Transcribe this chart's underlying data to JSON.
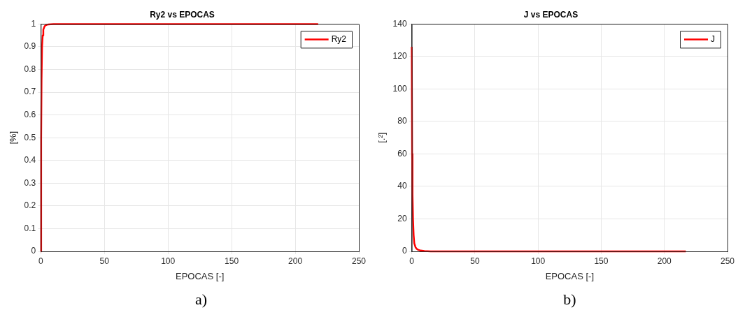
{
  "chart_data": [
    {
      "type": "line",
      "title": "Ry2 vs EPOCAS",
      "xlabel": "EPOCAS [-]",
      "ylabel": "[%]",
      "annotations": [
        "a)"
      ],
      "series": [
        {
          "name": "Ry2",
          "color": "#ff0000",
          "x": [
            0,
            0.3,
            0.6,
            1,
            1.5,
            2,
            3,
            4,
            5,
            6,
            8,
            10,
            15,
            20,
            50,
            100,
            150,
            218
          ],
          "values": [
            0,
            0.5,
            0.75,
            0.9,
            0.95,
            0.975,
            0.99,
            0.995,
            0.997,
            0.998,
            0.999,
            1,
            1,
            1,
            1,
            1,
            1,
            1
          ]
        }
      ],
      "xlim": [
        0,
        250
      ],
      "xticks": [
        0,
        50,
        100,
        150,
        200,
        250
      ],
      "ylim": [
        0,
        1
      ],
      "yticks": [
        0,
        0.1,
        0.2,
        0.3,
        0.4,
        0.5,
        0.6,
        0.7,
        0.8,
        0.9,
        1
      ],
      "grid": true,
      "legend": "top right",
      "line_style": "solid",
      "marker": "none"
    },
    {
      "type": "line",
      "title": "J vs EPOCAS",
      "xlabel": "EPOCAS [-]",
      "ylabel": "[.²]",
      "annotations": [
        "b)"
      ],
      "series": [
        {
          "name": "J",
          "color": "#ff0000",
          "x": [
            0,
            0.3,
            0.6,
            1,
            1.5,
            2,
            3,
            4,
            5,
            7,
            10,
            15,
            20,
            50,
            100,
            150,
            217
          ],
          "values": [
            126,
            60,
            35,
            20,
            10,
            5,
            2.5,
            1.5,
            1,
            0.5,
            0.2,
            0,
            0,
            0,
            0,
            0,
            0
          ]
        }
      ],
      "xlim": [
        0,
        250
      ],
      "xticks": [
        0,
        50,
        100,
        150,
        200,
        250
      ],
      "ylim": [
        0,
        140
      ],
      "yticks": [
        0,
        20,
        40,
        60,
        80,
        100,
        120,
        140
      ],
      "grid": true,
      "legend": "top right",
      "line_style": "solid",
      "marker": "none"
    }
  ]
}
